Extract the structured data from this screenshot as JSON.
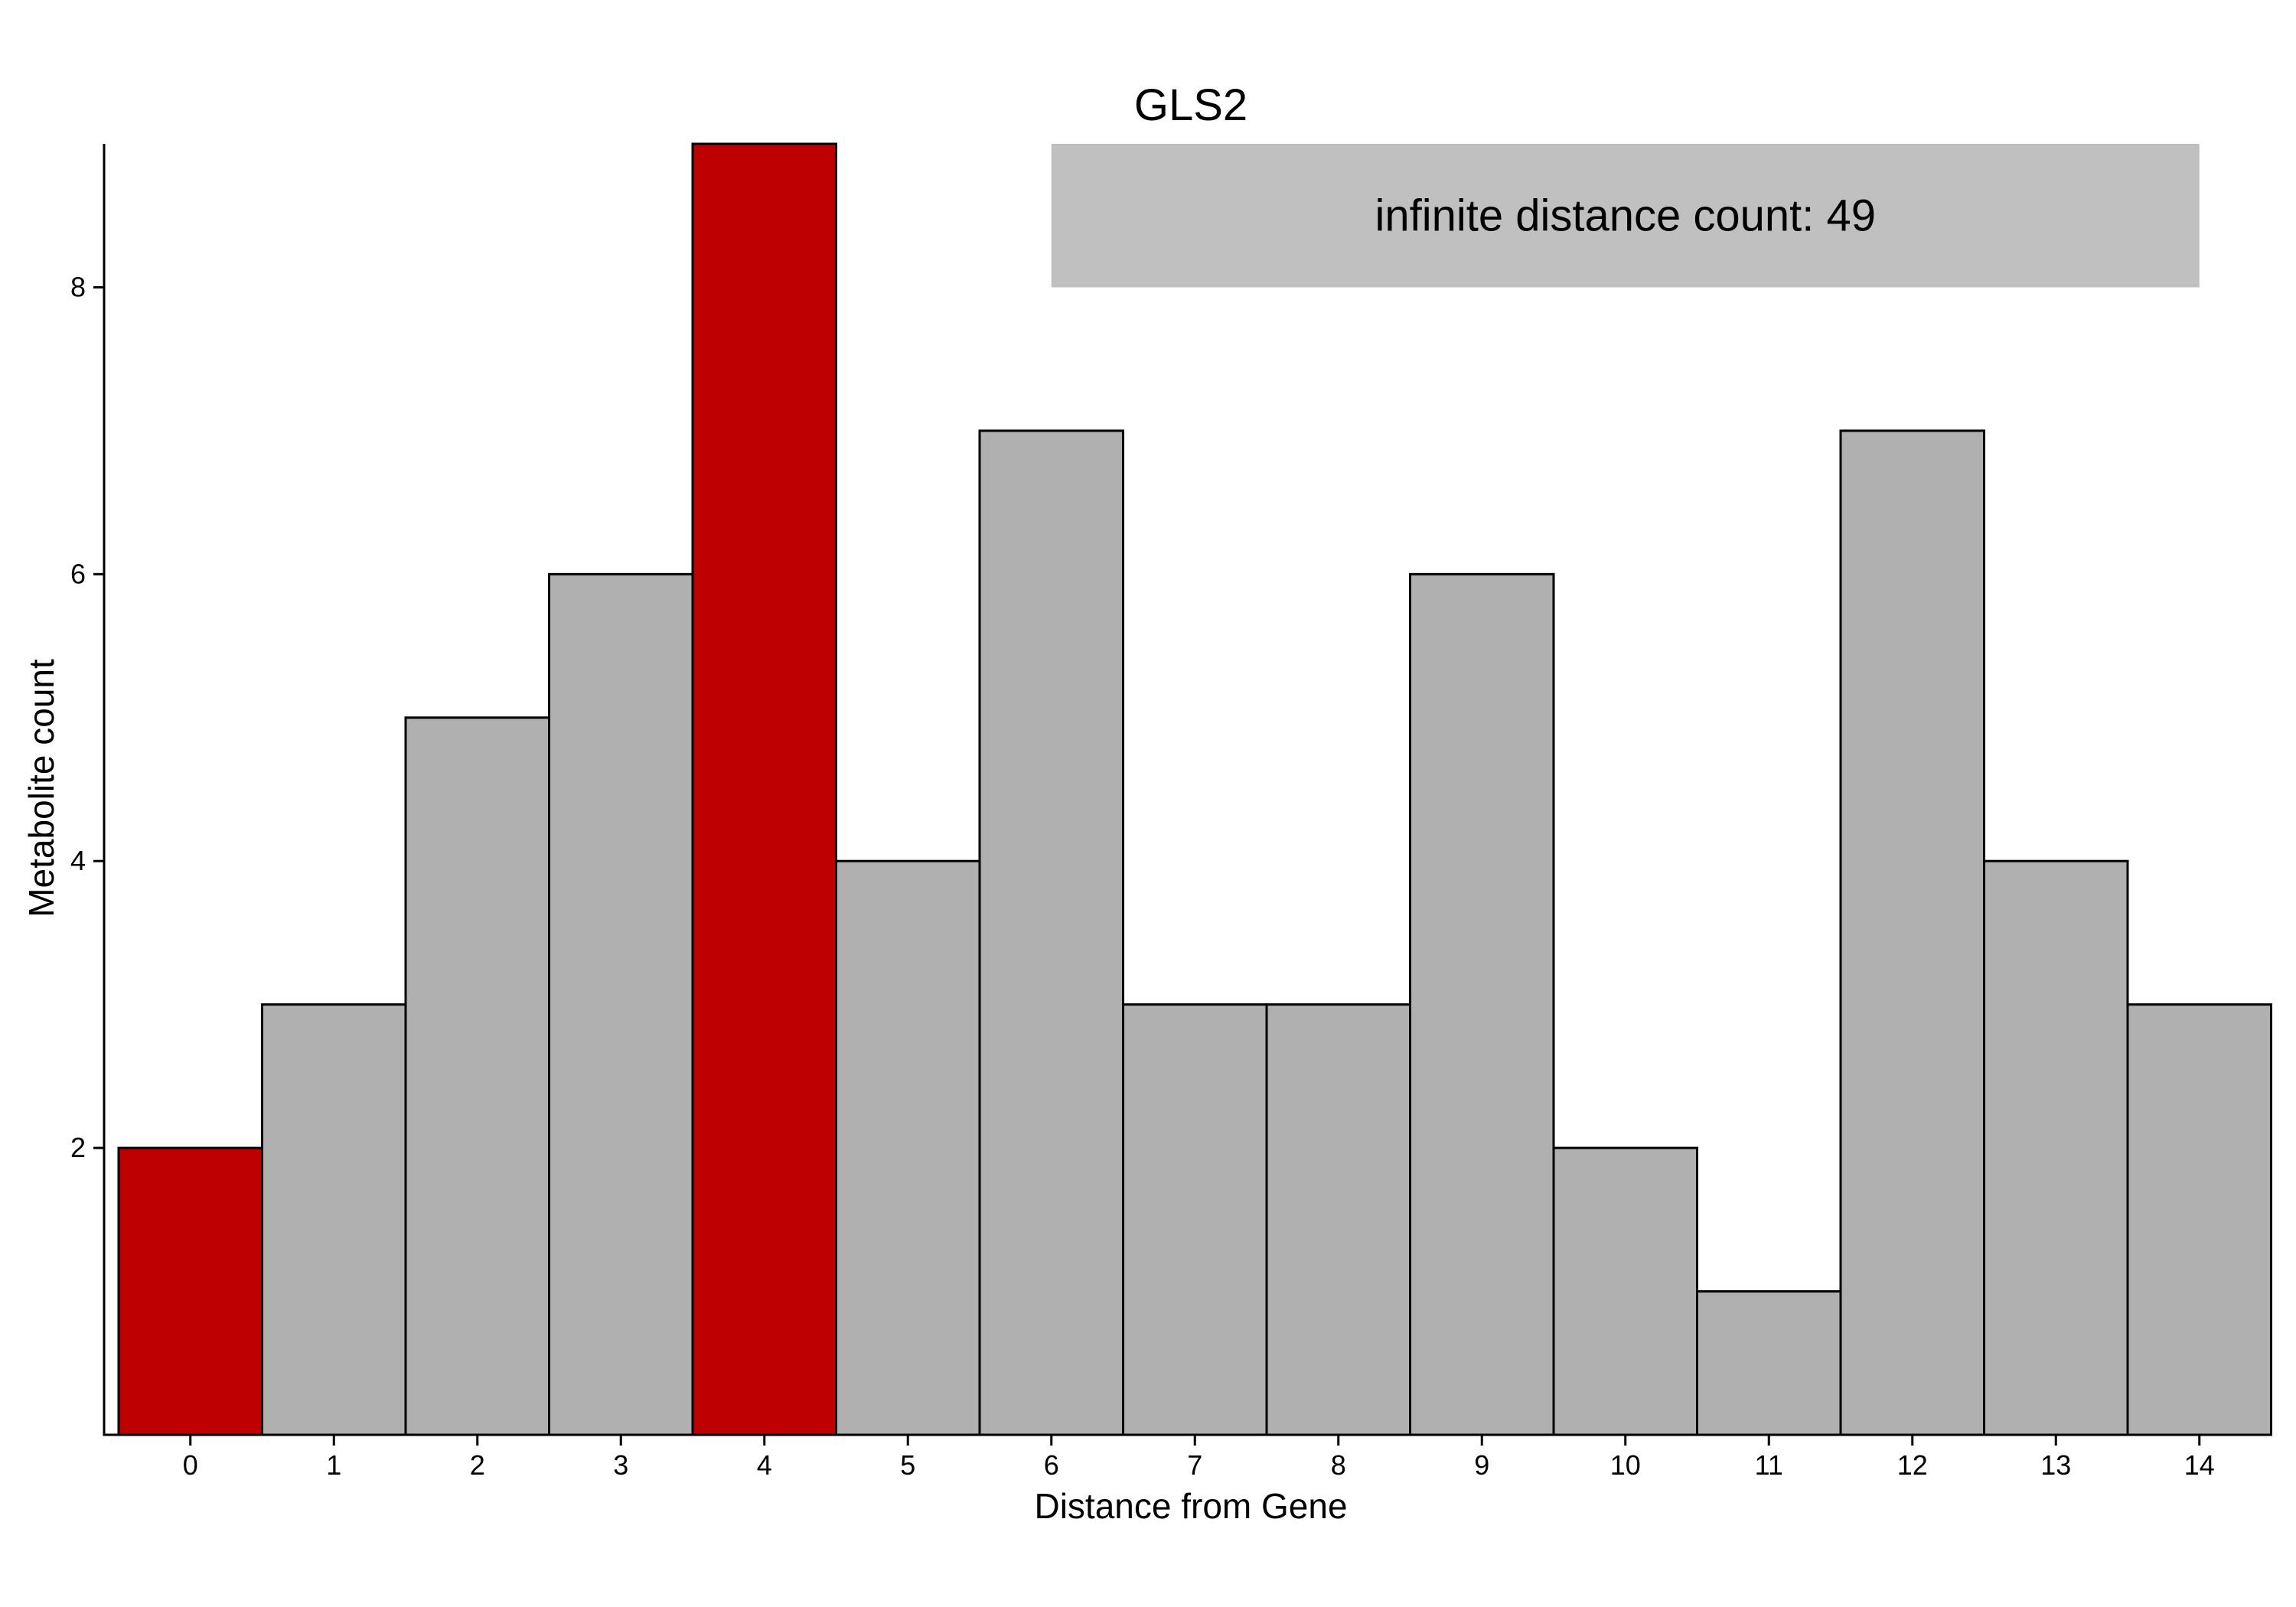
{
  "chart_data": {
    "type": "bar",
    "title": "GLS2",
    "xlabel": "Distance from Gene",
    "ylabel": "Metabolite count",
    "categories": [
      "0",
      "1",
      "2",
      "3",
      "4",
      "5",
      "6",
      "7",
      "8",
      "9",
      "10",
      "11",
      "12",
      "13",
      "14"
    ],
    "values": [
      2,
      3,
      5,
      6,
      9,
      4,
      7,
      3,
      3,
      6,
      2,
      1,
      7,
      4,
      3
    ],
    "highlighted_categories": [
      "0",
      "4"
    ],
    "colors": {
      "highlight": "#BF0000",
      "default": "#B0B0B0",
      "bar_outline": "#000000",
      "annotation_box": "#C0C0C0"
    },
    "ylim": [
      0,
      9
    ],
    "yticks": [
      2,
      4,
      6,
      8
    ],
    "xlim": [
      -0.5,
      14.5
    ],
    "annotation": {
      "text": "infinite distance count: 49",
      "x_range": [
        6,
        14
      ],
      "y_range": [
        8,
        9
      ]
    },
    "grid": false,
    "legend": "none"
  }
}
